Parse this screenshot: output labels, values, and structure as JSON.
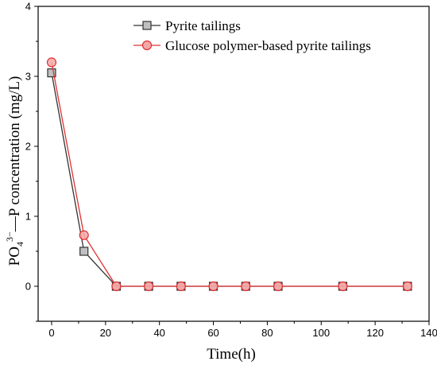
{
  "chart_data": {
    "type": "line",
    "xlabel": "Time(h)",
    "ylabel": {
      "base": "PO",
      "subscript": "4",
      "superscript": "3−",
      "rest": "—P  concentration  (mg/L)"
    },
    "xlim": [
      -5,
      140
    ],
    "ylim": [
      -0.5,
      4
    ],
    "xticks": [
      0,
      20,
      40,
      60,
      80,
      100,
      120,
      140
    ],
    "yticks": [
      0,
      1,
      2,
      3,
      4
    ],
    "grid": false,
    "legend_position": "top-left",
    "series": [
      {
        "name": "Pyrite tailings",
        "marker": "square",
        "color": "#333333",
        "fill": "#c0c0c0",
        "x": [
          0,
          12,
          24,
          36,
          48,
          60,
          72,
          84,
          108,
          132
        ],
        "y": [
          3.05,
          0.5,
          0,
          0,
          0,
          0,
          0,
          0,
          0,
          0
        ]
      },
      {
        "name": "Glucose polymer-based pyrite tailings",
        "marker": "circle",
        "color": "#e03030",
        "fill": "#f4a8a8",
        "x": [
          0,
          12,
          24,
          36,
          48,
          60,
          72,
          84,
          108,
          132
        ],
        "y": [
          3.2,
          0.73,
          0,
          0,
          0,
          0,
          0,
          0,
          0,
          0
        ]
      }
    ]
  }
}
